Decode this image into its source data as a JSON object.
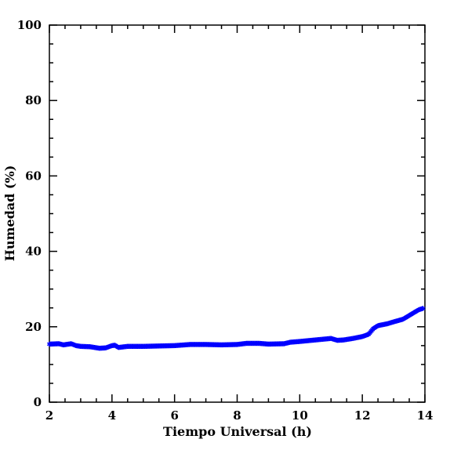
{
  "chart_data": {
    "type": "scatter",
    "title": "",
    "xlabel": "Tiempo Universal (h)",
    "ylabel": "Humedad (%)",
    "xlim": [
      2,
      14
    ],
    "ylim": [
      0,
      100
    ],
    "xticks": [
      2,
      4,
      6,
      8,
      10,
      12,
      14
    ],
    "xtick_labels": [
      "2",
      "4",
      "6",
      "8",
      "10",
      "12",
      "14"
    ],
    "yticks": [
      0,
      20,
      40,
      60,
      80,
      100
    ],
    "ytick_labels": [
      "0",
      "20",
      "40",
      "60",
      "80",
      "100"
    ],
    "x_minor_step": 0.5,
    "y_minor_step": 5,
    "grid": false,
    "marker": "asterisk",
    "color": "#0000ff",
    "anchors": [
      [
        2.0,
        15.4
      ],
      [
        2.3,
        15.5
      ],
      [
        2.45,
        15.2
      ],
      [
        2.7,
        15.5
      ],
      [
        2.85,
        15.0
      ],
      [
        3.0,
        14.8
      ],
      [
        3.3,
        14.7
      ],
      [
        3.6,
        14.3
      ],
      [
        3.8,
        14.4
      ],
      [
        4.0,
        15.0
      ],
      [
        4.1,
        15.1
      ],
      [
        4.2,
        14.5
      ],
      [
        4.5,
        14.8
      ],
      [
        5.0,
        14.8
      ],
      [
        5.5,
        14.9
      ],
      [
        6.0,
        15.0
      ],
      [
        6.5,
        15.3
      ],
      [
        7.0,
        15.3
      ],
      [
        7.5,
        15.2
      ],
      [
        8.0,
        15.3
      ],
      [
        8.3,
        15.6
      ],
      [
        8.7,
        15.6
      ],
      [
        9.0,
        15.4
      ],
      [
        9.5,
        15.5
      ],
      [
        9.7,
        15.9
      ],
      [
        10.0,
        16.1
      ],
      [
        10.5,
        16.5
      ],
      [
        11.0,
        16.9
      ],
      [
        11.2,
        16.4
      ],
      [
        11.4,
        16.5
      ],
      [
        11.7,
        16.9
      ],
      [
        12.0,
        17.4
      ],
      [
        12.2,
        18.0
      ],
      [
        12.35,
        19.5
      ],
      [
        12.5,
        20.3
      ],
      [
        12.8,
        20.8
      ],
      [
        13.0,
        21.3
      ],
      [
        13.3,
        22.0
      ],
      [
        13.6,
        23.5
      ],
      [
        13.8,
        24.5
      ],
      [
        13.95,
        24.9
      ]
    ]
  }
}
